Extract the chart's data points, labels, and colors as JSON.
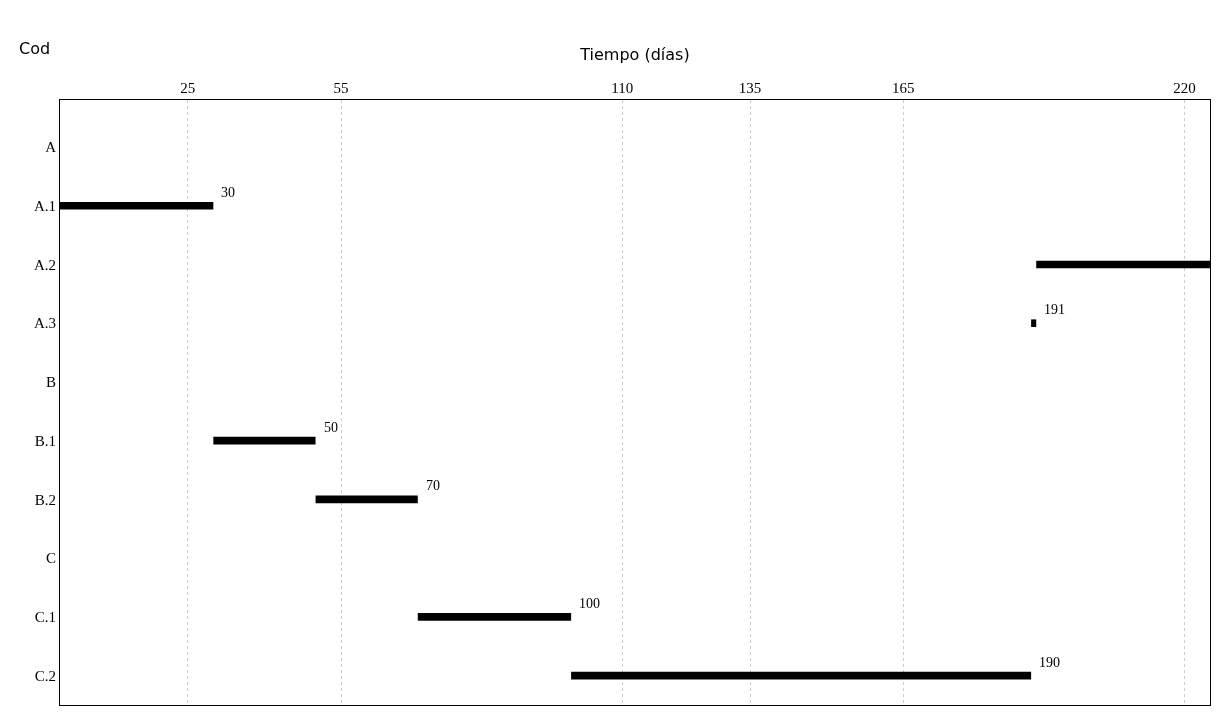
{
  "chart_data": {
    "type": "bar",
    "orientation": "horizontal",
    "xlabel": "Tiempo (días)",
    "ylabel": "Cod",
    "categories": [
      "A",
      "A.1",
      "A.2",
      "A.3",
      "B",
      "B.1",
      "B.2",
      "C",
      "C.1",
      "C.2"
    ],
    "base": [
      null,
      0,
      191,
      190,
      null,
      30,
      50,
      null,
      70,
      100
    ],
    "values": [
      null,
      30,
      34,
      1,
      null,
      20,
      20,
      null,
      30,
      90
    ],
    "value_labels": [
      null,
      "30",
      null,
      "191",
      null,
      "50",
      "70",
      null,
      "100",
      "190"
    ],
    "color": "#000000",
    "xlim": [
      0,
      225
    ],
    "xticks": [
      25,
      55,
      110,
      135,
      165,
      220
    ],
    "grid": "x"
  }
}
